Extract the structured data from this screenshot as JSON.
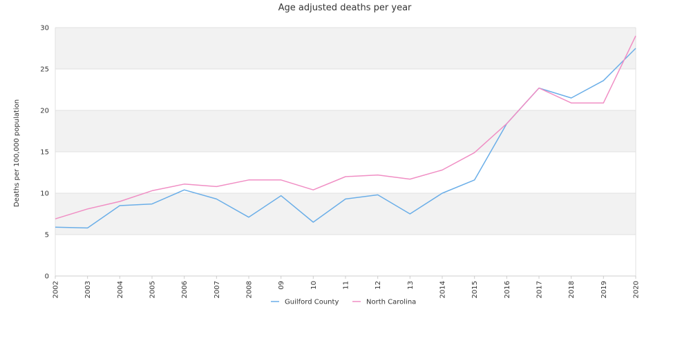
{
  "chart_data": {
    "type": "line",
    "title": "Age adjusted deaths per year",
    "ylabel": "Deaths per 100,000 population",
    "xlabel": "",
    "ylim": [
      0,
      30
    ],
    "yticks": [
      0,
      5,
      10,
      15,
      20,
      25,
      30
    ],
    "categories": [
      "2002",
      "2003",
      "2004",
      "2005",
      "2006",
      "2007",
      "2008",
      "09",
      "10",
      "11",
      "12",
      "13",
      "2014",
      "2015",
      "2016",
      "2017",
      "2018",
      "2019",
      "2020"
    ],
    "series": [
      {
        "name": "Guilford County",
        "color": "#6aaee8",
        "values": [
          5.9,
          5.8,
          8.5,
          8.7,
          10.4,
          9.3,
          7.1,
          9.7,
          6.5,
          9.3,
          9.8,
          7.5,
          10.0,
          11.6,
          18.4,
          22.7,
          21.5,
          23.6,
          27.5
        ]
      },
      {
        "name": "North Carolina",
        "color": "#f08ec4",
        "values": [
          6.9,
          8.1,
          9.0,
          10.3,
          11.1,
          10.8,
          11.6,
          11.6,
          10.4,
          12.0,
          12.2,
          11.7,
          12.8,
          14.9,
          18.4,
          22.7,
          20.9,
          20.9,
          29.0
        ]
      }
    ],
    "grid": true,
    "legend": "bottom-center"
  }
}
